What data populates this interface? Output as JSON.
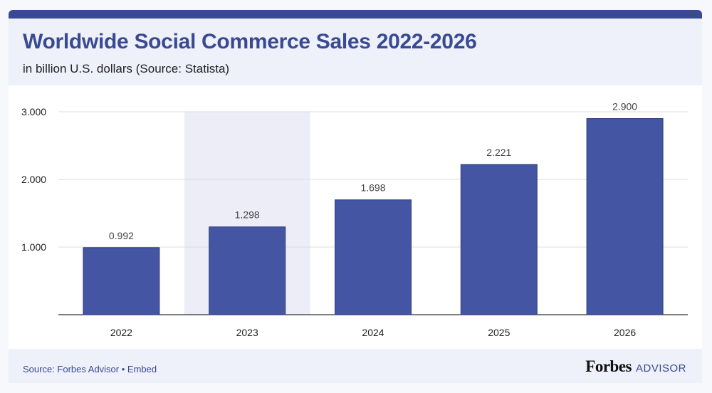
{
  "header": {
    "title": "Worldwide Social Commerce Sales 2022-2026",
    "subtitle": "in billion U.S. dollars (Source: Statista)"
  },
  "footer": {
    "source_prefix": "Source: Forbes Advisor",
    "separator": " • ",
    "embed_label": "Embed",
    "brand_name": "Forbes",
    "brand_suffix": "ADVISOR"
  },
  "colors": {
    "bar": "#4455a3",
    "accent": "#3a4a92",
    "highlight_band": "#ecedf7",
    "grid": "#dddddd"
  },
  "chart_data": {
    "type": "bar",
    "title": "Worldwide Social Commerce Sales 2022-2026",
    "subtitle": "in billion U.S. dollars (Source: Statista)",
    "xlabel": "",
    "ylabel": "",
    "categories": [
      "2022",
      "2023",
      "2024",
      "2025",
      "2026"
    ],
    "values": [
      0.992,
      1.298,
      1.698,
      2.221,
      2.9
    ],
    "value_labels": [
      "0.992",
      "1.298",
      "1.698",
      "2.221",
      "2.900"
    ],
    "highlighted_category": "2023",
    "ylim": [
      0,
      3
    ],
    "yticks": [
      1,
      2,
      3
    ],
    "ytick_labels": [
      "1.000",
      "2.000",
      "3.000"
    ],
    "grid": true,
    "legend": "none"
  }
}
